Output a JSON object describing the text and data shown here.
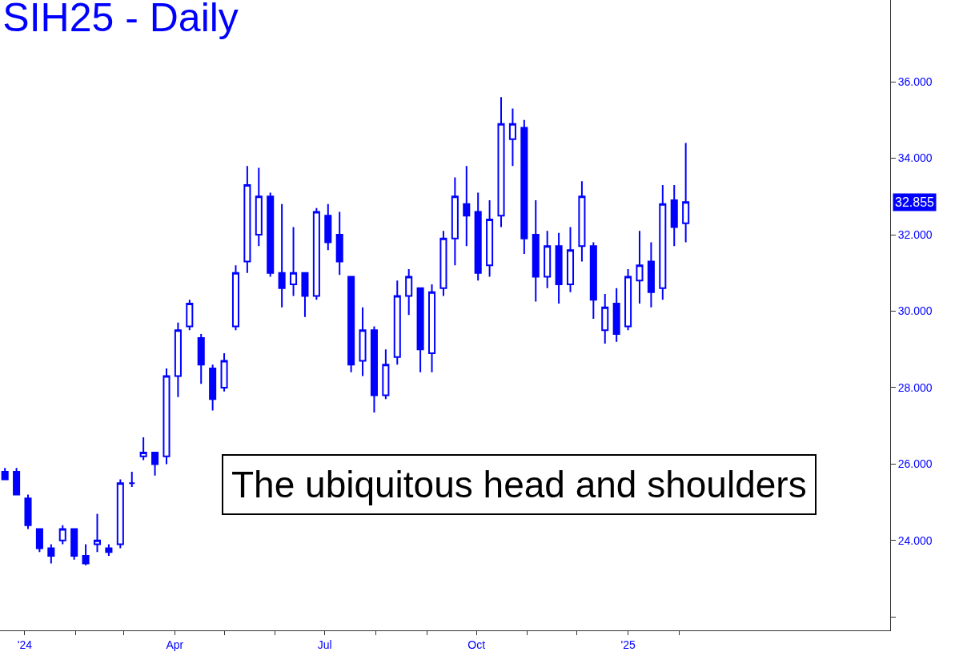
{
  "chart_data": {
    "type": "candlestick",
    "title": "SIH25 - Daily",
    "color": "#0000ff",
    "x": [
      "2023-12-20",
      "2023-12-27",
      "2024-01-03",
      "2024-01-10",
      "2024-01-17",
      "2024-01-24",
      "2024-01-31",
      "2024-02-07",
      "2024-02-14",
      "2024-02-21",
      "2024-02-28",
      "2024-03-06",
      "2024-03-13",
      "2024-03-20",
      "2024-03-27",
      "2024-04-03",
      "2024-04-10",
      "2024-04-17",
      "2024-04-24",
      "2024-05-01",
      "2024-05-08",
      "2024-05-15",
      "2024-05-22",
      "2024-05-29",
      "2024-06-05",
      "2024-06-12",
      "2024-06-19",
      "2024-06-26",
      "2024-07-03",
      "2024-07-10",
      "2024-07-17",
      "2024-07-24",
      "2024-07-31",
      "2024-08-07",
      "2024-08-14",
      "2024-08-21",
      "2024-08-28",
      "2024-09-04",
      "2024-09-11",
      "2024-09-18",
      "2024-09-25",
      "2024-10-02",
      "2024-10-09",
      "2024-10-16",
      "2024-10-23",
      "2024-10-30",
      "2024-11-06",
      "2024-11-13",
      "2024-11-20",
      "2024-11-27",
      "2024-12-04",
      "2024-12-11",
      "2024-12-18",
      "2024-12-25",
      "2025-01-01",
      "2025-01-08",
      "2025-01-15",
      "2025-01-22",
      "2025-01-29",
      "2025-02-05"
    ],
    "ohlc": [
      [
        25.8,
        25.9,
        25.6,
        25.6
      ],
      [
        25.8,
        25.9,
        25.2,
        25.2
      ],
      [
        25.1,
        25.2,
        24.3,
        24.4
      ],
      [
        24.3,
        24.3,
        23.7,
        23.8
      ],
      [
        23.8,
        23.9,
        23.4,
        23.6
      ],
      [
        24.0,
        24.4,
        23.9,
        24.3
      ],
      [
        24.3,
        24.3,
        23.5,
        23.6
      ],
      [
        23.6,
        23.9,
        23.35,
        23.4
      ],
      [
        23.9,
        24.7,
        23.7,
        24.0
      ],
      [
        23.8,
        23.9,
        23.6,
        23.7
      ],
      [
        23.9,
        25.6,
        23.8,
        25.5
      ],
      [
        25.5,
        25.8,
        25.4,
        25.5
      ],
      [
        26.2,
        26.7,
        26.1,
        26.3
      ],
      [
        26.3,
        26.3,
        25.7,
        26.0
      ],
      [
        26.2,
        28.5,
        26.0,
        28.3
      ],
      [
        28.3,
        29.7,
        27.75,
        29.5
      ],
      [
        29.6,
        30.3,
        29.5,
        30.2
      ],
      [
        29.3,
        29.4,
        28.1,
        28.6
      ],
      [
        28.5,
        28.6,
        27.4,
        27.7
      ],
      [
        28.0,
        28.9,
        27.9,
        28.7
      ],
      [
        29.6,
        31.2,
        29.5,
        31.0
      ],
      [
        31.3,
        33.8,
        31.0,
        33.3
      ],
      [
        32.0,
        33.75,
        31.7,
        33.0
      ],
      [
        33.0,
        33.1,
        30.9,
        31.0
      ],
      [
        31.0,
        32.8,
        30.1,
        30.6
      ],
      [
        30.7,
        32.2,
        30.4,
        31.0
      ],
      [
        31.0,
        31.0,
        29.85,
        30.4
      ],
      [
        30.4,
        32.7,
        30.3,
        32.6
      ],
      [
        32.5,
        32.8,
        31.6,
        31.8
      ],
      [
        32.0,
        32.6,
        30.95,
        31.3
      ],
      [
        30.9,
        30.9,
        28.4,
        28.6
      ],
      [
        28.7,
        30.1,
        28.3,
        29.5
      ],
      [
        29.5,
        29.6,
        27.35,
        27.8
      ],
      [
        27.8,
        29.0,
        27.7,
        28.6
      ],
      [
        28.8,
        30.8,
        28.6,
        30.4
      ],
      [
        30.4,
        31.1,
        29.9,
        30.9
      ],
      [
        30.6,
        30.6,
        28.4,
        29.0
      ],
      [
        28.9,
        30.7,
        28.4,
        30.5
      ],
      [
        30.6,
        32.1,
        30.4,
        31.9
      ],
      [
        31.9,
        33.5,
        31.2,
        33.0
      ],
      [
        32.8,
        33.8,
        31.7,
        32.5
      ],
      [
        32.6,
        33.1,
        30.8,
        31.0
      ],
      [
        31.2,
        32.9,
        30.9,
        32.4
      ],
      [
        32.5,
        35.6,
        32.2,
        34.9
      ],
      [
        34.5,
        35.3,
        33.8,
        34.9
      ],
      [
        34.8,
        35.0,
        31.5,
        31.9
      ],
      [
        32.0,
        32.9,
        30.25,
        30.9
      ],
      [
        30.9,
        32.1,
        30.6,
        31.7
      ],
      [
        31.7,
        32.05,
        30.2,
        30.7
      ],
      [
        30.7,
        32.2,
        30.5,
        31.6
      ],
      [
        31.7,
        33.4,
        31.3,
        33.0
      ],
      [
        31.7,
        31.8,
        29.8,
        30.3
      ],
      [
        29.5,
        30.45,
        29.15,
        30.1
      ],
      [
        30.2,
        30.6,
        29.2,
        29.4
      ],
      [
        29.6,
        31.1,
        29.5,
        30.9
      ],
      [
        30.8,
        32.1,
        30.2,
        31.2
      ],
      [
        31.3,
        31.8,
        30.1,
        30.5
      ],
      [
        30.6,
        33.3,
        30.3,
        32.8
      ],
      [
        32.9,
        33.3,
        31.7,
        32.2
      ],
      [
        32.3,
        34.4,
        31.8,
        32.855
      ]
    ],
    "xlim": [
      "2023-12-17",
      "2025-06-09"
    ],
    "xticks": [
      {
        "value": "2024-01-01",
        "label": "'24"
      },
      {
        "value": "2024-02-01",
        "label": null
      },
      {
        "value": "2024-03-01",
        "label": null
      },
      {
        "value": "2024-04-01",
        "label": "Apr"
      },
      {
        "value": "2024-05-01",
        "label": null
      },
      {
        "value": "2024-06-01",
        "label": null
      },
      {
        "value": "2024-07-01",
        "label": "Jul"
      },
      {
        "value": "2024-08-01",
        "label": null
      },
      {
        "value": "2024-09-01",
        "label": null
      },
      {
        "value": "2024-10-01",
        "label": "Oct"
      },
      {
        "value": "2024-11-01",
        "label": null
      },
      {
        "value": "2024-12-01",
        "label": null
      },
      {
        "value": "2025-01-01",
        "label": "'25"
      },
      {
        "value": "2025-02-01",
        "label": null
      }
    ],
    "ylim": [
      21.65,
      38.14
    ],
    "yticks": [
      {
        "value": 22,
        "label": null
      },
      {
        "value": 24,
        "label": "24.000"
      },
      {
        "value": 26,
        "label": "26.000"
      },
      {
        "value": 28,
        "label": "28.000"
      },
      {
        "value": 30,
        "label": "30.000"
      },
      {
        "value": 32,
        "label": "32.000"
      },
      {
        "value": 34,
        "label": "34.000"
      },
      {
        "value": 36,
        "label": "36.000"
      }
    ],
    "annotations": [
      "The ubiquitous head and shoulders",
      "32.855"
    ]
  }
}
